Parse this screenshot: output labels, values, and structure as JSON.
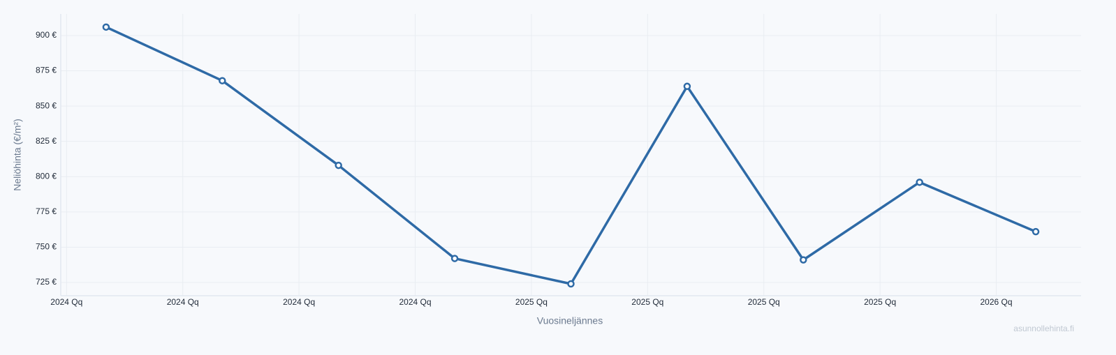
{
  "chart_data": {
    "type": "line",
    "x_label": "Vuosineljännes",
    "y_label": "Neliöhinta (€/m²)",
    "watermark": "asunnollehinta.fi",
    "x": [
      0,
      1,
      2,
      3,
      4,
      5,
      6,
      7,
      8
    ],
    "series": [
      {
        "color": "#2e6aa6",
        "values": [
          906,
          868,
          808,
          742,
          724,
          864,
          741,
          796,
          761
        ]
      }
    ],
    "xlim": [
      -0.39,
      8.39
    ],
    "xticks": [
      {
        "value": -0.34,
        "label": "2024 Qq"
      },
      {
        "value": 0.66,
        "label": "2024 Qq"
      },
      {
        "value": 1.66,
        "label": "2024 Qq"
      },
      {
        "value": 2.66,
        "label": "2024 Qq"
      },
      {
        "value": 3.66,
        "label": "2025 Qq"
      },
      {
        "value": 4.66,
        "label": "2025 Qq"
      },
      {
        "value": 5.66,
        "label": "2025 Qq"
      },
      {
        "value": 6.66,
        "label": "2025 Qq"
      },
      {
        "value": 7.66,
        "label": "2026 Qq"
      }
    ],
    "ylim": [
      715.6,
      915.3
    ],
    "yticks": [
      {
        "value": 725,
        "label": "725 €"
      },
      {
        "value": 750,
        "label": "750 €"
      },
      {
        "value": 775,
        "label": "775 €"
      },
      {
        "value": 800,
        "label": "800 €"
      },
      {
        "value": 825,
        "label": "825 €"
      },
      {
        "value": 850,
        "label": "850 €"
      },
      {
        "value": 875,
        "label": "875 €"
      },
      {
        "value": 900,
        "label": "900 €"
      }
    ],
    "grid": true
  }
}
